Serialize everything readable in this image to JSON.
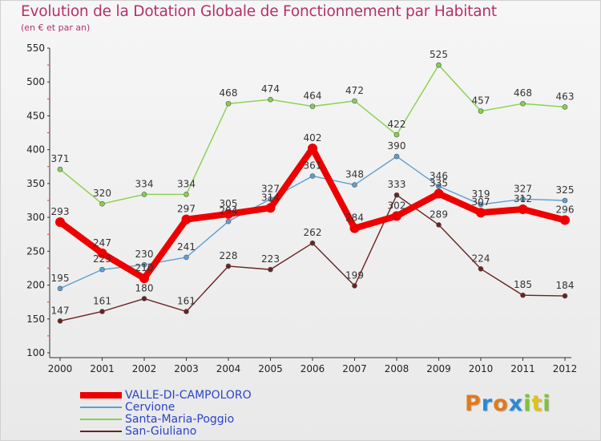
{
  "chart_data": {
    "type": "line",
    "title": "Evolution de la Dotation Globale de Fonctionnement par Habitant",
    "subtitle": "(en € et par an)",
    "xlabel": "",
    "ylabel": "",
    "ylim": [
      100,
      550
    ],
    "yticks": [
      100,
      150,
      200,
      250,
      300,
      350,
      400,
      450,
      500,
      550
    ],
    "categories": [
      "2000",
      "2001",
      "2002",
      "2003",
      "2004",
      "2005",
      "2006",
      "2007",
      "2008",
      "2009",
      "2010",
      "2011",
      "2012"
    ],
    "grid": false,
    "legend_position": "bottom-left",
    "series": [
      {
        "name": "Santa-Maria-Poggio",
        "color": "#86d14b",
        "values": [
          371,
          320,
          334,
          334,
          468,
          474,
          464,
          472,
          422,
          525,
          457,
          468,
          463
        ]
      },
      {
        "name": "Cervione",
        "color": "#5e9fd3",
        "values": [
          195,
          223,
          230,
          241,
          294,
          327,
          361,
          348,
          390,
          346,
          319,
          327,
          325
        ]
      },
      {
        "name": "San-Giuliano",
        "color": "#6b2222",
        "values": [
          147,
          161,
          180,
          161,
          228,
          223,
          262,
          199,
          333,
          289,
          224,
          185,
          184
        ]
      },
      {
        "name": "VALLE-DI-CAMPOLORO",
        "color": "#ee0000",
        "values": [
          293,
          247,
          210,
          297,
          305,
          314,
          402,
          284,
          302,
          335,
          307,
          312,
          296
        ]
      }
    ],
    "data_labels": {
      "Santa-Maria-Poggio": [
        "371",
        "320",
        "334",
        "334",
        "468",
        "474",
        "464",
        "472",
        "422",
        "525",
        "457",
        "468",
        "463"
      ],
      "Cervione": [
        "195",
        "223",
        "230",
        "241",
        "294",
        "327",
        "361",
        "348",
        "390",
        "346",
        "319",
        "327",
        "325"
      ],
      "San-Giuliano": [
        "147",
        "161",
        "180",
        "161",
        "228",
        "223",
        "262",
        "199",
        "333",
        "289",
        "224",
        "185",
        "184"
      ],
      "VALLE-DI-CAMPOLORO": [
        "293",
        "247",
        "210",
        "297",
        "305",
        "314",
        "402",
        "284",
        "302",
        "335",
        "307",
        "312",
        "296"
      ]
    },
    "legend_order": [
      "VALLE-DI-CAMPOLORO",
      "Cervione",
      "Santa-Maria-Poggio",
      "San-Giuliano"
    ]
  },
  "logo": {
    "letters": [
      "P",
      "r",
      "o",
      "x",
      "i",
      "t",
      "i"
    ],
    "colors": [
      "#e07a1a",
      "#2a88d8",
      "#e07a1a",
      "#2a88d8",
      "#7cc430",
      "#e0c21a",
      "#7cc430"
    ]
  }
}
